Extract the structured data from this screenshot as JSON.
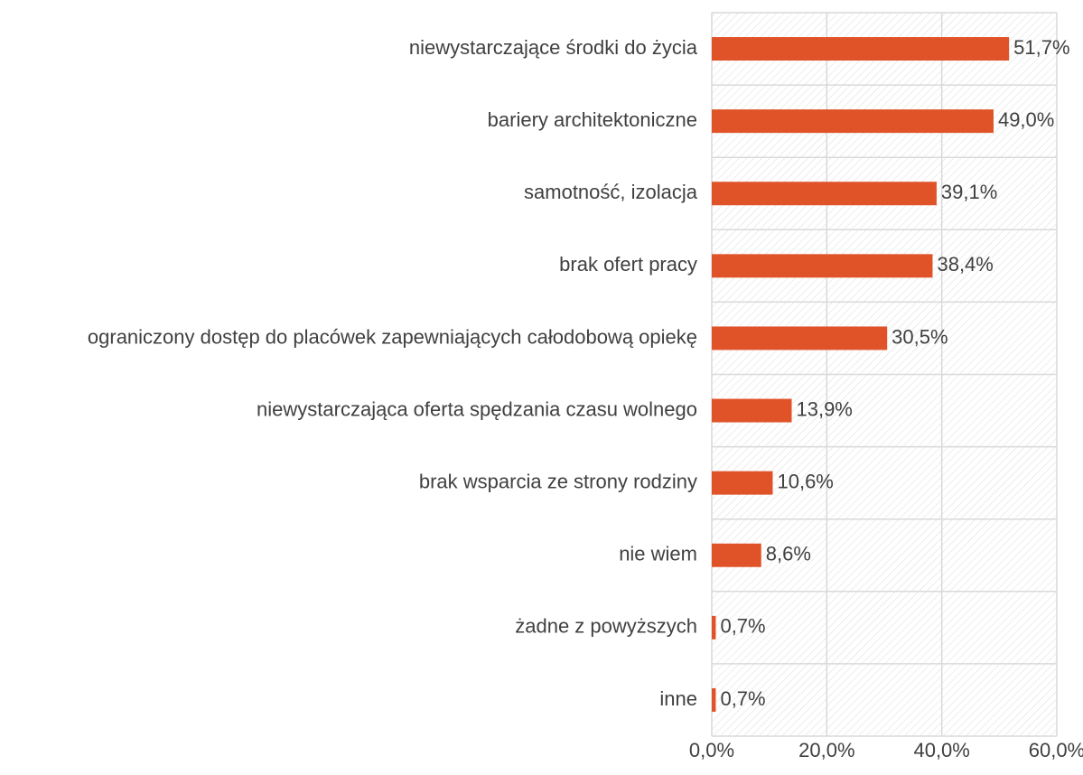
{
  "chart_data": {
    "type": "bar",
    "orientation": "horizontal",
    "categories": [
      "niewystarczające środki do życia",
      "bariery architektoniczne",
      "samotność, izolacja",
      "brak ofert pracy",
      "ograniczony dostęp do placówek zapewniających całodobową opiekę",
      "niewystarczająca oferta spędzania czasu wolnego",
      "brak wsparcia ze strony rodziny",
      "nie wiem",
      "żadne z powyższych",
      "inne"
    ],
    "values": [
      51.7,
      49.0,
      39.1,
      38.4,
      30.5,
      13.9,
      10.6,
      8.6,
      0.7,
      0.7
    ],
    "value_labels": [
      "51,7%",
      "49,0%",
      "39,1%",
      "38,4%",
      "30,5%",
      "13,9%",
      "10,6%",
      "8,6%",
      "0,7%",
      "0,7%"
    ],
    "color": "#e05328",
    "xlim": [
      0,
      60
    ],
    "xticks": [
      {
        "value": 0,
        "label": "0,0%"
      },
      {
        "value": 20,
        "label": "20,0%"
      },
      {
        "value": 40,
        "label": "40,0%"
      },
      {
        "value": 60,
        "label": "60,0%"
      }
    ],
    "grid": true
  }
}
